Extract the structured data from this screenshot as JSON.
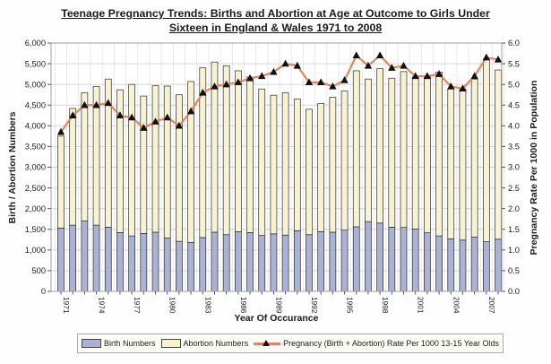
{
  "title": "Teenage Pregnancy Trends: Births and Abortion at Age at Outcome to Girls Under Sixteen in England & Wales 1971 to 2008",
  "axes": {
    "left_title": "Birth / Abortion Numbers",
    "right_title": "Pregnancy Rate Per 1000 in Population",
    "x_title": "Year Of Occurance",
    "left_ticks": [
      "0",
      "500",
      "1,000",
      "1,500",
      "2,000",
      "2,500",
      "3,000",
      "3,500",
      "4,000",
      "4,500",
      "5,000",
      "5,500",
      "6,000"
    ],
    "right_ticks": [
      "0.0",
      "0.5",
      "1.0",
      "1.5",
      "2.0",
      "2.5",
      "3.0",
      "3.5",
      "4.0",
      "4.5",
      "5.0",
      "5.5",
      "6.0"
    ],
    "x_tick_labels": [
      "1971",
      "1974",
      "1977",
      "1980",
      "1983",
      "1986",
      "1989",
      "1992",
      "1995",
      "1998",
      "2001",
      "2004",
      "2007"
    ]
  },
  "legend": [
    {
      "label": "Birth Numbers",
      "swatch": "bar",
      "color": "#aab3d5"
    },
    {
      "label": "Abortion Numbers",
      "swatch": "bar",
      "color": "#f6f2d2"
    },
    {
      "label": "Pregnancy (Birth + Abortion)  Rate Per 1000 13-15 Year Olds",
      "swatch": "line",
      "color": "#e0855f"
    }
  ],
  "colors": {
    "birth_bar": "#aab3d5",
    "abortion_bar": "#f6f2d2",
    "bar_border": "#2a2a2a",
    "rate_line": "#e0855f",
    "rate_marker": "#111111",
    "gridline": "#d2d2d2",
    "plot_border": "#a0a0a0",
    "text": "#1a1a1a"
  },
  "chart_data": {
    "type": "bar",
    "stacked": true,
    "title": "Teenage Pregnancy Trends: Births and Abortion at Age at Outcome to Girls Under Sixteen in England & Wales 1971 to 2008",
    "xlabel": "Year Of Occurance",
    "ylabel_left": "Birth / Abortion Numbers",
    "ylabel_right": "Pregnancy Rate Per 1000 in Population",
    "left_ylim": [
      0,
      6000
    ],
    "right_ylim": [
      0.0,
      6.0
    ],
    "grid": true,
    "legend_position": "bottom",
    "years": [
      1971,
      1972,
      1973,
      1974,
      1975,
      1976,
      1977,
      1978,
      1979,
      1980,
      1981,
      1982,
      1983,
      1984,
      1985,
      1986,
      1987,
      1988,
      1989,
      1990,
      1991,
      1992,
      1993,
      1994,
      1995,
      1996,
      1997,
      1998,
      1999,
      2000,
      2001,
      2002,
      2003,
      2004,
      2005,
      2006,
      2007,
      2008
    ],
    "series": [
      {
        "name": "Birth Numbers",
        "type": "bar",
        "axis": "left",
        "values": [
          1530,
          1600,
          1700,
          1600,
          1550,
          1420,
          1340,
          1400,
          1430,
          1290,
          1210,
          1180,
          1300,
          1430,
          1370,
          1440,
          1420,
          1350,
          1390,
          1360,
          1465,
          1370,
          1445,
          1430,
          1480,
          1560,
          1685,
          1650,
          1550,
          1545,
          1505,
          1415,
          1340,
          1270,
          1240,
          1310,
          1200,
          1260
        ]
      },
      {
        "name": "Abortion Numbers",
        "type": "bar",
        "axis": "left",
        "values": [
          2220,
          2820,
          3100,
          3350,
          3580,
          3450,
          3660,
          3320,
          3540,
          3670,
          3540,
          3890,
          4100,
          4110,
          4080,
          3890,
          3760,
          3540,
          3350,
          3440,
          3185,
          3030,
          3095,
          3260,
          3360,
          3770,
          3445,
          3730,
          3600,
          3765,
          3675,
          3765,
          3960,
          3620,
          3650,
          3820,
          4400,
          4090
        ]
      },
      {
        "name": "Pregnancy (Birth + Abortion) Rate Per 1000 13-15 Year Olds",
        "type": "line",
        "axis": "right",
        "values": [
          3.85,
          4.25,
          4.5,
          4.5,
          4.55,
          4.25,
          4.2,
          3.95,
          4.1,
          4.2,
          4.0,
          4.35,
          4.8,
          4.95,
          5.0,
          5.05,
          5.15,
          5.2,
          5.3,
          5.5,
          5.45,
          5.05,
          5.05,
          4.95,
          5.1,
          5.7,
          5.45,
          5.7,
          5.4,
          5.45,
          5.2,
          5.2,
          5.25,
          4.95,
          4.9,
          5.2,
          5.65,
          5.6
        ]
      }
    ]
  }
}
